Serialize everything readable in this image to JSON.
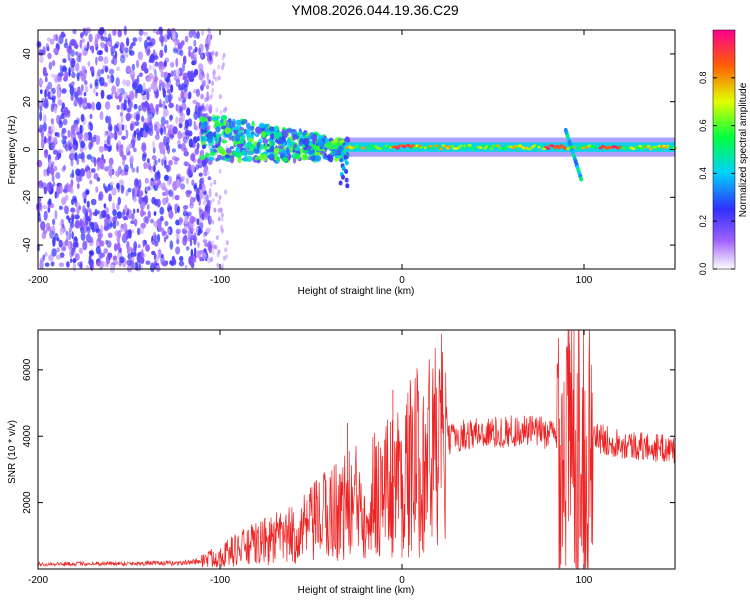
{
  "title": "YM08.2026.044.19.36.C29",
  "colors": {
    "snr_line": "#ee2222",
    "axis": "#000000"
  },
  "chart_data": [
    {
      "type": "heatmap",
      "name": "spectrogram",
      "xlabel": "Height of straight line (km)",
      "ylabel": "Frequency (Hz)",
      "xlim": [
        -200,
        150
      ],
      "ylim": [
        -50,
        50
      ],
      "xticks": [
        "-200",
        "-100",
        "0",
        "100"
      ],
      "yticks": [
        "40",
        "20",
        "0",
        "-20",
        "-40"
      ],
      "colorbar": {
        "label": "Normalized spectral amplitude",
        "range": [
          0,
          1
        ],
        "ticks": [
          "0.0",
          "0.2",
          "0.4",
          "0.6",
          "0.8"
        ]
      },
      "description_features": {
        "noise_region_x": [
          -200,
          -105
        ],
        "signal_band_center_hz": 1,
        "wide_feature_x": [
          -110,
          -30
        ],
        "peak_x_km": [
          0,
          85,
          115
        ]
      }
    },
    {
      "type": "line",
      "name": "snr",
      "xlabel": "Height of straight line (km)",
      "ylabel": "SNR (10 * v/v)",
      "xlim": [
        -200,
        150
      ],
      "ylim": [
        0,
        7200
      ],
      "xticks": [
        "-200",
        "-100",
        "0",
        "100"
      ],
      "yticks": [
        "2000",
        "4000",
        "6000"
      ],
      "envelope": {
        "x": [
          -200,
          -120,
          -110,
          -100,
          -90,
          -80,
          -70,
          -60,
          -50,
          -40,
          -30,
          -20,
          -10,
          0,
          10,
          20,
          30,
          40,
          50,
          60,
          70,
          80,
          85,
          90,
          95,
          100,
          105,
          110,
          120,
          130,
          140,
          150
        ],
        "y": [
          150,
          180,
          250,
          400,
          600,
          750,
          900,
          1000,
          1300,
          1700,
          1900,
          2100,
          2400,
          2800,
          3300,
          3700,
          4000,
          4100,
          4100,
          4150,
          4150,
          4100,
          4000,
          3900,
          3800,
          3900,
          4000,
          3900,
          3800,
          3700,
          3650,
          3600
        ]
      },
      "spikes": [
        {
          "x": -5,
          "y": 5400
        },
        {
          "x": -30,
          "y": 4400
        },
        {
          "x": -15,
          "y": 4100
        },
        {
          "x": 92,
          "y": 6800
        },
        {
          "x": 97,
          "y": 7200
        },
        {
          "x": 100,
          "y": 600
        }
      ]
    }
  ]
}
